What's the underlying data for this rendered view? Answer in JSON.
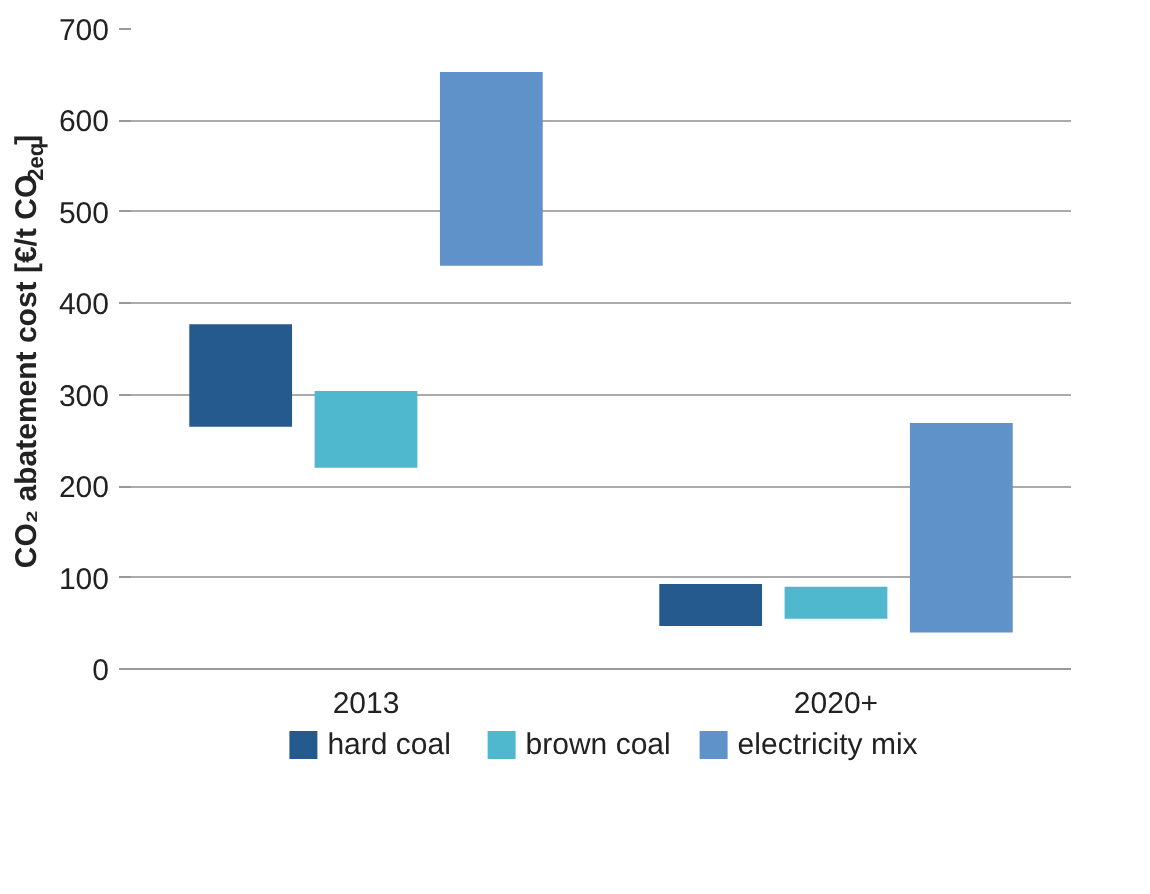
{
  "chart_data": {
    "type": "bar",
    "ylabel": "CO₂ abatement cost [€/t CO$_{2eq}$]",
    "categories": [
      "2013",
      "2020+"
    ],
    "series": [
      {
        "name": "hard coal",
        "color": "#255a8e",
        "values": [
          112,
          46
        ],
        "base": [
          265,
          47
        ]
      },
      {
        "name": "brown coal",
        "color": "#4fb8cf",
        "values": [
          84,
          35
        ],
        "base": [
          220,
          55
        ]
      },
      {
        "name": "electricity mix",
        "color": "#5f92c8",
        "values": [
          212,
          229
        ],
        "base": [
          441,
          40
        ]
      }
    ],
    "ylim": [
      0,
      700
    ],
    "yticks": [
      0,
      100,
      200,
      300,
      400,
      500,
      600,
      700
    ],
    "grid": "y",
    "legend": "bottom"
  }
}
